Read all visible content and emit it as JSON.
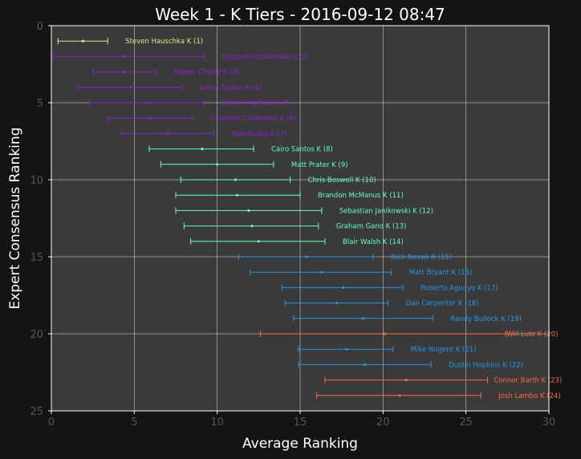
{
  "chart_data": {
    "type": "scatter",
    "title": "Week 1 - K Tiers - 2016-09-12 08:47",
    "xlabel": "Average Ranking",
    "ylabel": "Expert Consensus Ranking",
    "xlim": [
      0,
      30
    ],
    "ylim": [
      25,
      0
    ],
    "xticks": [
      "0",
      "5",
      "10",
      "15",
      "20",
      "25",
      "30"
    ],
    "yticks": [
      "0",
      "5",
      "10",
      "15",
      "20",
      "25"
    ],
    "grid": true,
    "tier_colors": [
      "#e6e68a",
      "#8f1fd6",
      "#66ffbf",
      "#2596e6",
      "#ff6a3d"
    ],
    "points": [
      {
        "label": "Steven Hauschka K (1)",
        "rank": 1,
        "avg": 1.9,
        "min": 0.4,
        "max": 3.4,
        "tier": 0
      },
      {
        "label": "Stephen Gostkowski K (2)",
        "rank": 2,
        "avg": 4.4,
        "min": 0.1,
        "max": 9.2,
        "tier": 1
      },
      {
        "label": "Mason Crosby K (3)",
        "rank": 3,
        "avg": 4.4,
        "min": 2.5,
        "max": 6.3,
        "tier": 1
      },
      {
        "label": "Justin Tucker K (4)",
        "rank": 4,
        "avg": 4.8,
        "min": 1.6,
        "max": 7.9,
        "tier": 1
      },
      {
        "label": "Dustin Hopkins K (5)",
        "rank": 5,
        "avg": 5.8,
        "min": 2.3,
        "max": 9.2,
        "tier": 1
      },
      {
        "label": "Chandler Catanzaro K (6)",
        "rank": 6,
        "avg": 5.9,
        "min": 3.4,
        "max": 8.5,
        "tier": 1
      },
      {
        "label": "Dan Bailey K (7)",
        "rank": 7,
        "avg": 7.0,
        "min": 4.2,
        "max": 9.8,
        "tier": 1
      },
      {
        "label": "Cairo Santos K (8)",
        "rank": 8,
        "avg": 9.1,
        "min": 5.9,
        "max": 12.2,
        "tier": 2
      },
      {
        "label": "Matt Prater K (9)",
        "rank": 9,
        "avg": 10.0,
        "min": 6.6,
        "max": 13.4,
        "tier": 2
      },
      {
        "label": "Chris Boswell K (10)",
        "rank": 10,
        "avg": 11.1,
        "min": 7.8,
        "max": 14.4,
        "tier": 2
      },
      {
        "label": "Brandon McManus K (11)",
        "rank": 11,
        "avg": 11.2,
        "min": 7.5,
        "max": 15.0,
        "tier": 2
      },
      {
        "label": "Sebastian Janikowski K (12)",
        "rank": 12,
        "avg": 11.9,
        "min": 7.5,
        "max": 16.3,
        "tier": 2
      },
      {
        "label": "Graham Gano K (13)",
        "rank": 13,
        "avg": 12.1,
        "min": 8.0,
        "max": 16.1,
        "tier": 2
      },
      {
        "label": "Blair Walsh K (14)",
        "rank": 14,
        "avg": 12.5,
        "min": 8.4,
        "max": 16.5,
        "tier": 2
      },
      {
        "label": "Nick Novak K (15)",
        "rank": 15,
        "avg": 15.4,
        "min": 11.3,
        "max": 19.4,
        "tier": 3
      },
      {
        "label": "Matt Bryant K (16)",
        "rank": 16,
        "avg": 16.3,
        "min": 12.0,
        "max": 20.5,
        "tier": 3
      },
      {
        "label": "Roberto Aguayo K (17)",
        "rank": 17,
        "avg": 17.6,
        "min": 13.9,
        "max": 21.2,
        "tier": 3
      },
      {
        "label": "Dan Carpenter K (18)",
        "rank": 18,
        "avg": 17.2,
        "min": 14.1,
        "max": 20.3,
        "tier": 3
      },
      {
        "label": "Randy Bullock K (19)",
        "rank": 19,
        "avg": 18.8,
        "min": 14.6,
        "max": 23.0,
        "tier": 3
      },
      {
        "label": "Will Lutz K (20)",
        "rank": 20,
        "avg": 20.1,
        "min": 12.6,
        "max": 27.4,
        "tier": 4
      },
      {
        "label": "Mike Nugent K (21)",
        "rank": 21,
        "avg": 17.8,
        "min": 14.9,
        "max": 20.6,
        "tier": 3
      },
      {
        "label": "Dustin Hopkins K (22)",
        "rank": 22,
        "avg": 18.9,
        "min": 14.9,
        "max": 22.9,
        "tier": 3
      },
      {
        "label": "Connor Barth K (23)",
        "rank": 23,
        "avg": 21.4,
        "min": 16.5,
        "max": 26.3,
        "tier": 4
      },
      {
        "label": "Josh Lambo K (24)",
        "rank": 24,
        "avg": 21.0,
        "min": 16.0,
        "max": 25.9,
        "tier": 4
      }
    ]
  }
}
